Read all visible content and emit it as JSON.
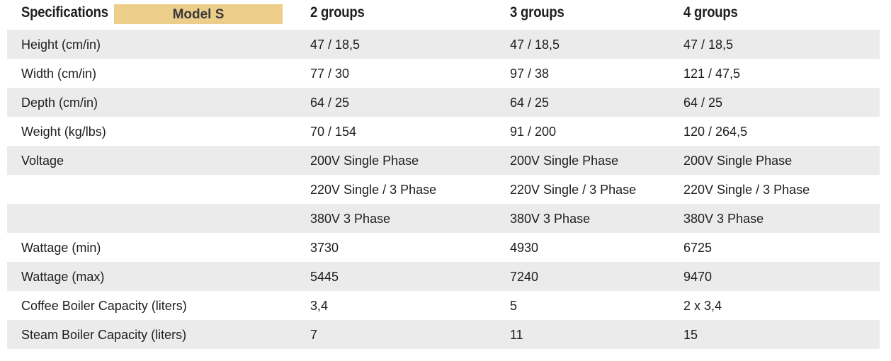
{
  "header": {
    "specifications_label": "Specifications",
    "model_badge": "Model S",
    "columns": [
      "2 groups",
      "3 groups",
      "4 groups"
    ]
  },
  "rows": [
    {
      "label": "Height (cm/in)",
      "values": [
        "47 / 18,5",
        "47 / 18,5",
        "47 / 18,5"
      ]
    },
    {
      "label": "Width (cm/in)",
      "values": [
        "77 / 30",
        "97 / 38",
        "121 / 47,5"
      ]
    },
    {
      "label": "Depth (cm/in)",
      "values": [
        "64 / 25",
        "64 / 25",
        "64 / 25"
      ]
    },
    {
      "label": "Weight (kg/lbs)",
      "values": [
        "70 / 154",
        "91 / 200",
        "120 / 264,5"
      ]
    },
    {
      "label": "Voltage",
      "values": [
        "200V Single Phase",
        "200V Single Phase",
        "200V Single Phase"
      ]
    },
    {
      "label": "",
      "values": [
        "220V Single / 3 Phase",
        "220V Single / 3 Phase",
        "220V Single / 3 Phase"
      ]
    },
    {
      "label": "",
      "values": [
        "380V 3 Phase",
        "380V 3 Phase",
        "380V 3 Phase"
      ]
    },
    {
      "label": "Wattage (min)",
      "values": [
        "3730",
        "4930",
        "6725"
      ]
    },
    {
      "label": "Wattage (max)",
      "values": [
        "5445",
        "7240",
        "9470"
      ]
    },
    {
      "label": "Coffee Boiler Capacity (liters)",
      "values": [
        "3,4",
        "5",
        "2 x 3,4"
      ]
    },
    {
      "label": "Steam Boiler Capacity (liters)",
      "values": [
        "7",
        "11",
        "15"
      ]
    }
  ],
  "colors": {
    "badge_background": "#ecce8a",
    "row_shade": "#ebebeb",
    "text": "#1e1e1e"
  }
}
